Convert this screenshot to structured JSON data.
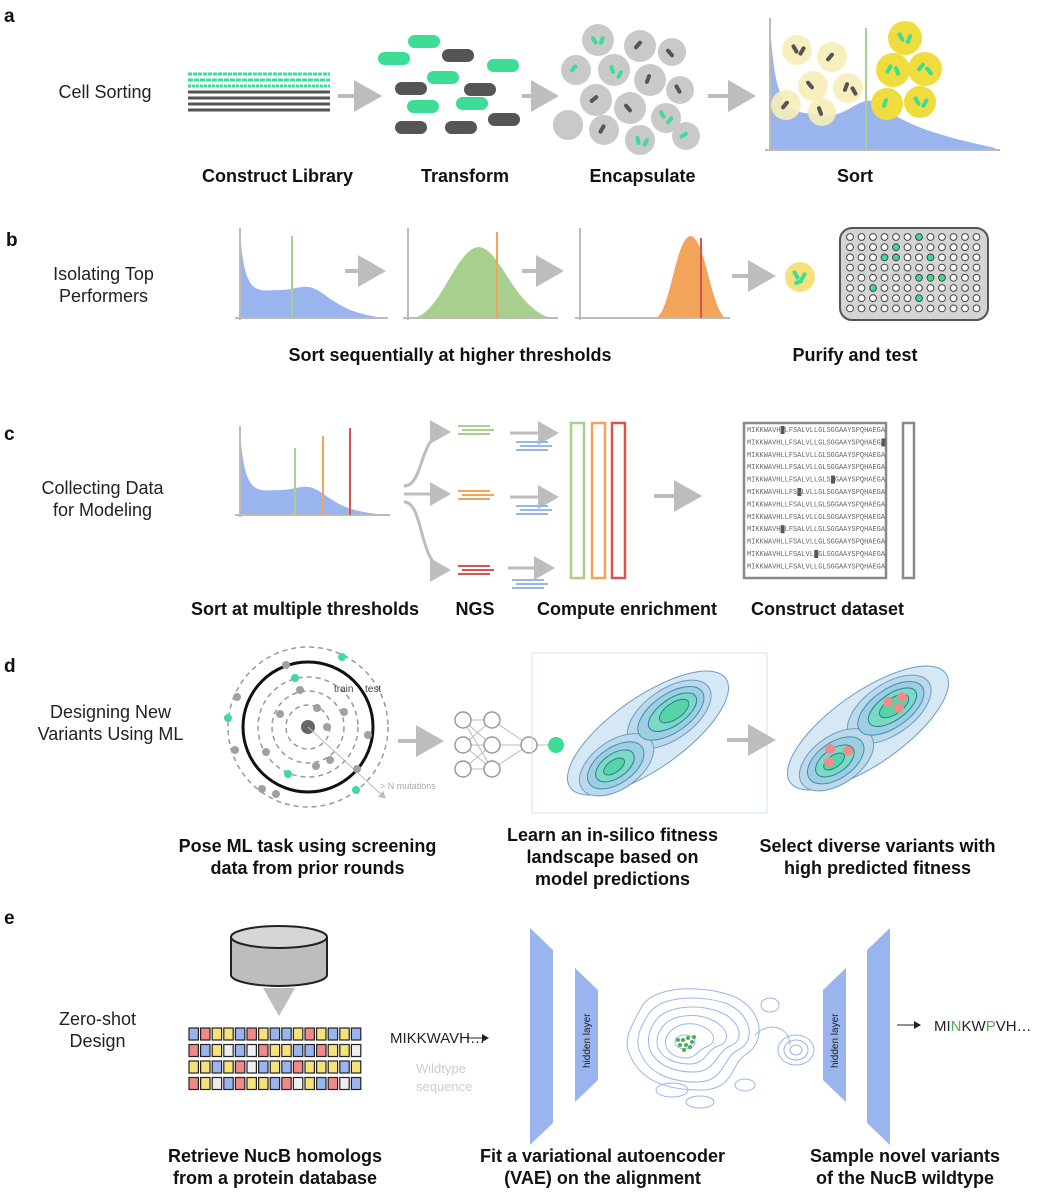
{
  "panels": {
    "a": {
      "letter": "a",
      "title": "Cell Sorting",
      "steps": [
        "Construct Library",
        "Transform",
        "Encapsulate",
        "Sort"
      ]
    },
    "b": {
      "letter": "b",
      "title_lines": [
        "Isolating Top",
        "Performers"
      ],
      "captions": [
        "Sort sequentially at higher thresholds",
        "Purify and test"
      ]
    },
    "c": {
      "letter": "c",
      "title_lines": [
        "Collecting Data",
        "for Modeling"
      ],
      "captions": [
        "Sort at multiple thresholds",
        "NGS",
        "Compute enrichment",
        "Construct dataset"
      ],
      "sequences": [
        "MIKKWAVHLLFSALVLLGLSGGAAYSPQHAEGA",
        "MIKKWAVHLLFSALVLLGLSGGAAYSPQHAEGA",
        "MIKKWAVHLLFSALVLLGLSGGAAYSPQHAEGA",
        "MIKKWAVHLLFSALVLLGLSGGAAYSPQHAEGA",
        "MIKKWAVHLLFSALVLLGLSGGAAYSPQHAEGA",
        "MIKKWAVHLLFSALVLLGLSGGAAYSPQHAEGA",
        "MIKKWAVHLLFSALVLLGLSGGAAYSPQHAEGA",
        "MIKKWAVHLLFSALVLLGLSGGAAYSPQHAEGA",
        "MIKKWAVHLLFSALVLLGLSGGAAYSPQHAEGA",
        "MIKKWAVHLLFSALVLLGLSGGAAYSPQHAEGA",
        "MIKKWAVHLLFSALVLLGLSGGAAYSPQHAEGA",
        "MIKKWAVHLLFSALVLLGLSGGAAYSPQHAEGA"
      ]
    },
    "d": {
      "letter": "d",
      "title_lines": [
        "Designing New",
        "Variants Using ML"
      ],
      "labels": {
        "train": "train",
        "test": "test",
        "mutations": "> N mutations"
      },
      "captions": [
        [
          "Pose ML task using screening",
          "data from prior rounds"
        ],
        [
          "Learn an in-silico fitness",
          "landscape based on",
          "model predictions"
        ],
        [
          "Select diverse variants with",
          "high predicted fitness"
        ]
      ]
    },
    "e": {
      "letter": "e",
      "title_lines": [
        "Zero-shot",
        "Design"
      ],
      "wildtype_seq": "MIKKWAVH…",
      "wildtype_label_lines": [
        "Wildtype",
        "sequence"
      ],
      "hidden_layer": "hidden layer",
      "output_seq": {
        "p1": "MI",
        "p2": "N",
        "p3": "KW",
        "p4": "P",
        "p5": "VH…"
      },
      "captions": [
        [
          "Retrieve NucB homologs",
          "from a protein database"
        ],
        [
          "Fit a variational autoencoder",
          "(VAE) on the alignment"
        ],
        [
          "Sample novel variants",
          "of the NucB wildtype"
        ]
      ]
    }
  },
  "colors": {
    "green": "#3ddc97",
    "blue": "#9ab4ee",
    "green_dist": "#a8cf8e",
    "orange": "#f2a45a",
    "red": "#d9534f",
    "yellow": "#f6e27a",
    "gray": "#c9c9c9",
    "dark_gray": "#666666"
  }
}
